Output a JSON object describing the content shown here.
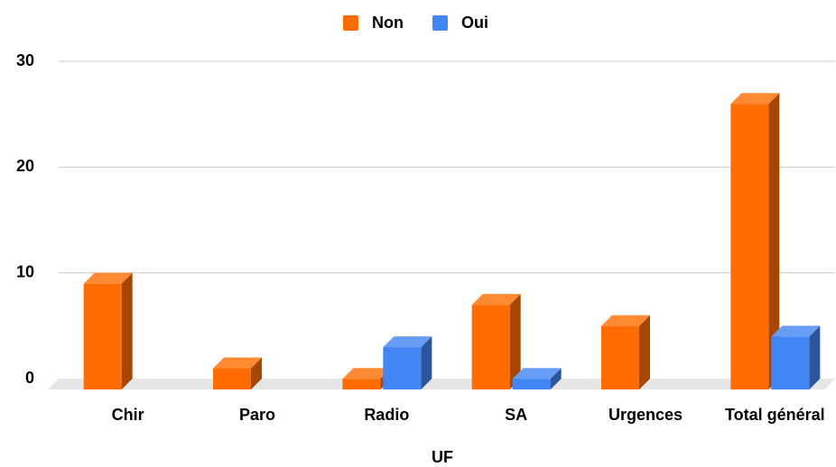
{
  "chart_data": {
    "type": "bar3d",
    "x_label": "UF",
    "categories": [
      "Chir",
      "Paro",
      "Radio",
      "SA",
      "Urgences",
      "Total général"
    ],
    "series": [
      {
        "name": "Non",
        "color": "#ff6d01",
        "values": [
          10,
          2,
          1,
          8,
          6,
          27
        ]
      },
      {
        "name": "Oui",
        "color": "#4285f4",
        "values": [
          0,
          0,
          4,
          1,
          0,
          5
        ]
      }
    ],
    "ylim": [
      0,
      30
    ],
    "yticks": [
      0,
      10,
      20,
      30
    ],
    "grid": true,
    "legend": "top"
  }
}
